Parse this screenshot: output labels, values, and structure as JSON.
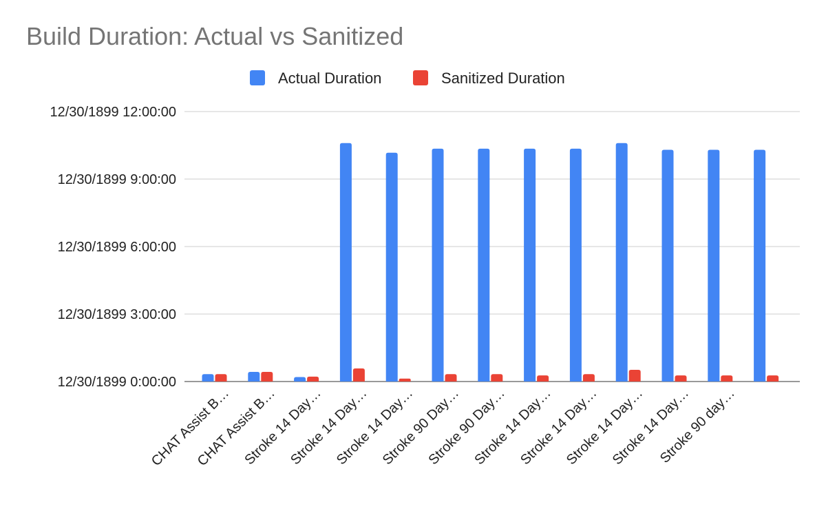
{
  "chart_data": {
    "type": "bar",
    "title": "Build Duration: Actual vs Sanitized",
    "xlabel": "",
    "ylabel": "",
    "categories": [
      "CHAT Assist B…",
      "CHAT Assist B…",
      "Stroke 14 Day…",
      "Stroke 14 Day…",
      "Stroke 14 Day…",
      "Stroke 90 Day…",
      "Stroke 90 Day…",
      "Stroke 14 Day…",
      "Stroke 14 Day…",
      "Stroke 14 Day…",
      "Stroke 14 Day…",
      "Stroke 90 day…",
      ""
    ],
    "series": [
      {
        "name": "Actual Duration",
        "color": "#4285f4",
        "values": [
          0.33,
          0.43,
          0.2,
          10.6,
          10.17,
          10.35,
          10.35,
          10.35,
          10.35,
          10.6,
          10.3,
          10.3,
          10.3
        ]
      },
      {
        "name": "Sanitized Duration",
        "color": "#ea4335",
        "values": [
          0.33,
          0.43,
          0.22,
          0.58,
          0.13,
          0.33,
          0.33,
          0.27,
          0.33,
          0.52,
          0.27,
          0.27,
          0.27
        ]
      }
    ],
    "ylim": [
      0,
      12
    ],
    "yticks": [
      0,
      3,
      6,
      9,
      12
    ],
    "ytick_labels": [
      "12/30/1899 0:00:00",
      "12/30/1899 3:00:00",
      "12/30/1899 6:00:00",
      "12/30/1899 9:00:00",
      "12/30/1899 12:00:00"
    ],
    "grid": true,
    "legend_position": "top"
  }
}
